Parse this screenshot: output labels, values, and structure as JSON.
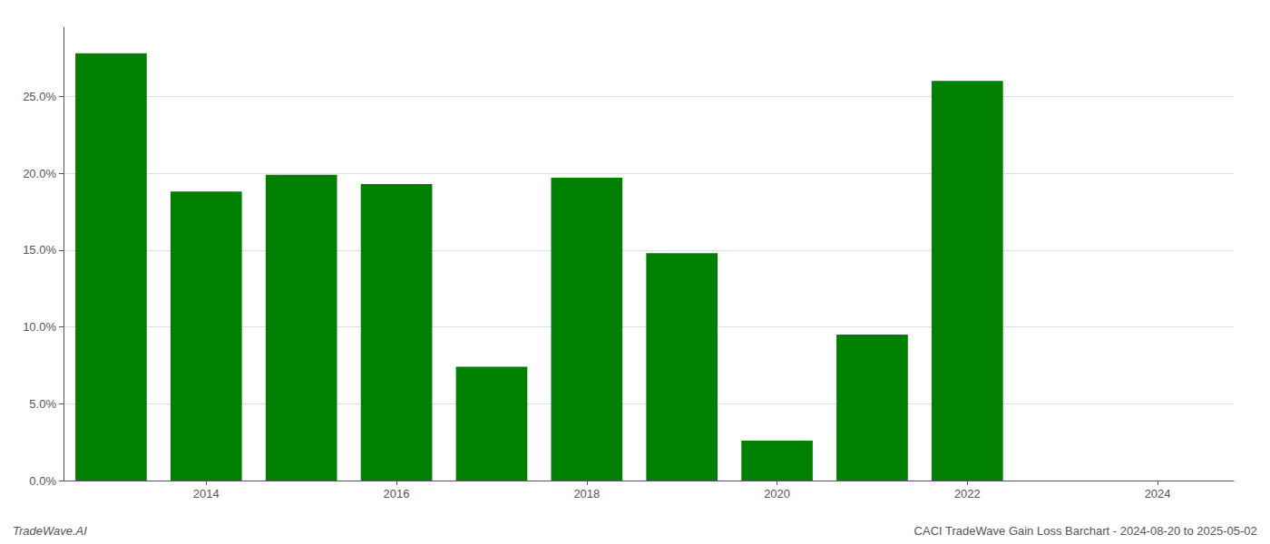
{
  "chart_data": {
    "type": "bar",
    "x": [
      2013,
      2014,
      2015,
      2016,
      2017,
      2018,
      2019,
      2020,
      2021,
      2022,
      2023
    ],
    "values": [
      0.278,
      0.188,
      0.199,
      0.193,
      0.074,
      0.197,
      0.148,
      0.026,
      0.095,
      0.26,
      0.0
    ],
    "color": "#008000",
    "xlim": [
      2012.5,
      2024.8
    ],
    "xticks": [
      2014,
      2016,
      2018,
      2020,
      2022,
      2024
    ],
    "ylim": [
      0,
      0.295
    ],
    "yticks": [
      {
        "value": 0.0,
        "label": "0.0%"
      },
      {
        "value": 0.05,
        "label": "5.0%"
      },
      {
        "value": 0.1,
        "label": "10.0%"
      },
      {
        "value": 0.15,
        "label": "15.0%"
      },
      {
        "value": 0.2,
        "label": "20.0%"
      },
      {
        "value": 0.25,
        "label": "25.0%"
      }
    ],
    "grid": true,
    "annotations": [
      "TradeWave.AI",
      "CACI TradeWave Gain Loss Barchart - 2024-08-20 to 2025-05-02"
    ]
  }
}
